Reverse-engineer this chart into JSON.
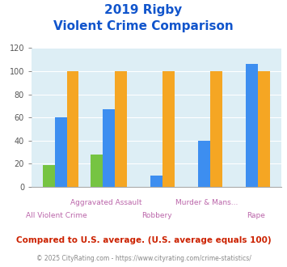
{
  "title_line1": "2019 Rigby",
  "title_line2": "Violent Crime Comparison",
  "categories": [
    "All Violent Crime",
    "Aggravated Assault",
    "Robbery",
    "Murder & Mans...",
    "Rape"
  ],
  "rigby": [
    19,
    28,
    0,
    0,
    0
  ],
  "idaho": [
    60,
    67,
    10,
    40,
    106
  ],
  "national": [
    100,
    100,
    100,
    100,
    100
  ],
  "rigby_color": "#76c442",
  "idaho_color": "#3d8ef0",
  "national_color": "#f5a623",
  "ylim": [
    0,
    120
  ],
  "yticks": [
    0,
    20,
    40,
    60,
    80,
    100,
    120
  ],
  "plot_bg": "#ddeef5",
  "title_color": "#1155cc",
  "xlabel_color": "#bb66aa",
  "footer_note": "Compared to U.S. average. (U.S. average equals 100)",
  "footer_copy": "© 2025 CityRating.com - https://www.cityrating.com/crime-statistics/",
  "footer_note_color": "#cc2200",
  "footer_copy_color": "#888888",
  "legend_text_color": "#333333"
}
